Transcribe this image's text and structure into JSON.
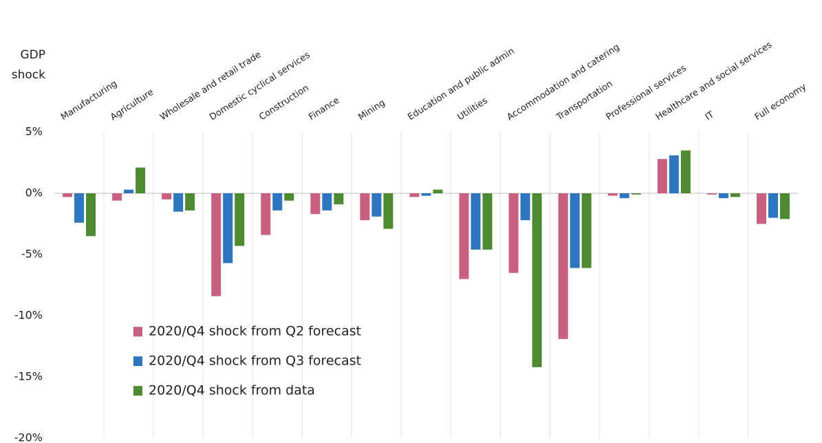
{
  "chart_data": {
    "type": "bar",
    "ylabel": "GDP shock",
    "categories": [
      "Manufacturing",
      "Agriculture",
      "Wholesale and retail trade",
      "Domestic cyclical services",
      "Construction",
      "Finance",
      "Mining",
      "Education and public admin",
      "Utilities",
      "Accommodation and catering",
      "Transportation",
      "Professional services",
      "Healthcare and social services",
      "IT",
      "Full economy"
    ],
    "series": [
      {
        "name": "2020/Q4 shock from Q2 forecast",
        "color": "#c9607f",
        "values": [
          -0.3,
          -0.6,
          -0.5,
          -8.4,
          -3.4,
          -1.7,
          -2.2,
          -0.3,
          -7.0,
          -6.5,
          -11.9,
          -0.2,
          2.8,
          -0.1,
          -2.5
        ]
      },
      {
        "name": "2020/Q4 shock from Q3 forecast",
        "color": "#2e75c0",
        "values": [
          -2.4,
          0.3,
          -1.5,
          -5.7,
          -1.4,
          -1.4,
          -1.9,
          -0.2,
          -4.6,
          -2.2,
          -6.1,
          -0.4,
          3.1,
          -0.4,
          -2.0
        ]
      },
      {
        "name": "2020/Q4 shock from data",
        "color": "#4e8a32",
        "values": [
          -3.5,
          2.1,
          -1.4,
          -4.3,
          -0.6,
          -0.9,
          -2.9,
          0.3,
          -4.6,
          -14.2,
          -6.1,
          -0.1,
          3.5,
          -0.3,
          -2.1
        ]
      }
    ],
    "ylim": [
      -20,
      5
    ],
    "yticks": [
      {
        "value": 5,
        "label": "5%"
      },
      {
        "value": 0,
        "label": "0%"
      },
      {
        "value": -5,
        "label": "-5%"
      },
      {
        "value": -10,
        "label": "-10%"
      },
      {
        "value": -15,
        "label": "-15%"
      },
      {
        "value": -20,
        "label": "-20%"
      }
    ],
    "grid": "x",
    "legend_loc": "lower left"
  }
}
